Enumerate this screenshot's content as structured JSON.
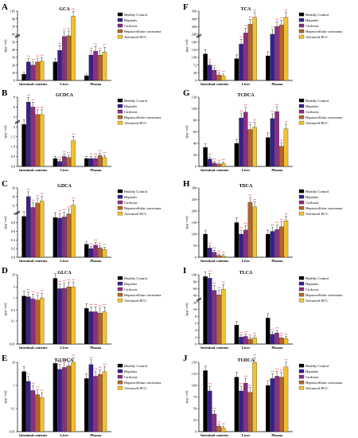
{
  "colors": {
    "Healthy Control": "#000000",
    "Hepatitis": "#3b1f8c",
    "Cirrhosis": "#8a2f82",
    "Hepatocellular carcinoma": "#b5652b",
    "Advanced HCC": "#f2c12e",
    "star": "#d81b2b"
  },
  "legend": [
    "Healthy Control",
    "Hepatitis",
    "Cirrhosis",
    "Hepatocellular carcinoma",
    "Advanced HCC"
  ],
  "y_unit": "(μg / ml)",
  "groups": [
    "Intestinal contents",
    "Liver",
    "Plasma"
  ],
  "chart_data": [
    {
      "type": "bar",
      "panel": "A",
      "title": "GCA",
      "ylabel": "(μg / ml)",
      "yscale": "broken",
      "yticks": [
        "0",
        "10",
        "20",
        "30",
        "40",
        "50",
        "60",
        "70",
        "90",
        "105"
      ],
      "categories": [
        "Intestinal contents",
        "Liver",
        "Plasma"
      ],
      "series": [
        {
          "name": "Healthy Control",
          "values": [
            8,
            24,
            6
          ]
        },
        {
          "name": "Hepatitis",
          "values": [
            24,
            39,
            33
          ]
        },
        {
          "name": "Cirrhosis",
          "values": [
            20,
            57,
            38
          ]
        },
        {
          "name": "Hepatocellular carcinoma",
          "values": [
            24,
            58,
            33
          ]
        },
        {
          "name": "Advanced HCC",
          "values": [
            25,
            95,
            37
          ]
        }
      ]
    },
    {
      "type": "bar",
      "panel": "B",
      "title": "GCDCA",
      "ylabel": "(μg / ml)",
      "yscale": "broken",
      "yticks": [
        "0.0",
        "0.5",
        "1.0",
        "1.5",
        "2",
        "4",
        "6",
        "8"
      ],
      "categories": [
        "Intestinal contents",
        "Liver",
        "Plasma"
      ],
      "series": [
        {
          "name": "Healthy Control",
          "values": [
            2.5,
            0.4,
            0.4
          ]
        },
        {
          "name": "Hepatitis",
          "values": [
            7,
            0.25,
            0.4
          ]
        },
        {
          "name": "Cirrhosis",
          "values": [
            6,
            0.5,
            0.4
          ]
        },
        {
          "name": "Hepatocellular carcinoma",
          "values": [
            4.5,
            0.45,
            0.55
          ]
        },
        {
          "name": "Advanced HCC",
          "values": [
            4.5,
            1.3,
            0.45
          ]
        }
      ]
    },
    {
      "type": "bar",
      "panel": "C",
      "title": "GDCA",
      "ylabel": "(μg / ml)",
      "yscale": "broken",
      "yticks": [
        "0.0",
        "0.2",
        "0.4",
        "0.6",
        "0.8",
        "8",
        "12",
        "16",
        "20"
      ],
      "categories": [
        "Intestinal contents",
        "Liver",
        "Plasma"
      ],
      "series": [
        {
          "name": "Healthy Control",
          "values": [
            6,
            5,
            0.3
          ]
        },
        {
          "name": "Hepatitis",
          "values": [
            16,
            4.5,
            0.2
          ]
        },
        {
          "name": "Cirrhosis",
          "values": [
            11,
            5.5,
            0.28
          ]
        },
        {
          "name": "Hepatocellular carcinoma",
          "values": [
            13,
            8,
            0.22
          ]
        },
        {
          "name": "Advanced HCC",
          "values": [
            14,
            12,
            0.18
          ]
        }
      ]
    },
    {
      "type": "bar",
      "panel": "D",
      "title": "GLCA",
      "ylabel": "(μg / ml)",
      "yscale": "log",
      "yticks": [
        "0.01",
        "0.1",
        "0.3",
        "1",
        "3",
        "10"
      ],
      "categories": [
        "Intestinal contents",
        "Liver",
        "Plasma"
      ],
      "series": [
        {
          "name": "Healthy Control",
          "values": [
            1.2,
            7,
            0.35
          ]
        },
        {
          "name": "Hepatitis",
          "values": [
            1.1,
            2.5,
            0.25
          ]
        },
        {
          "name": "Cirrhosis",
          "values": [
            0.9,
            2.6,
            0.25
          ]
        },
        {
          "name": "Hepatocellular carcinoma",
          "values": [
            0.8,
            3,
            0.22
          ]
        },
        {
          "name": "Advanced HCC",
          "values": [
            1.0,
            3,
            0.25
          ]
        }
      ]
    },
    {
      "type": "bar",
      "panel": "E",
      "title": "GUDCA",
      "ylabel": "(μg / ml)",
      "yscale": "log",
      "yticks": [
        "0.01",
        "0.1",
        "1",
        "10"
      ],
      "categories": [
        "Intestinal contents",
        "Liver",
        "Plasma"
      ],
      "series": [
        {
          "name": "Healthy Control",
          "values": [
            4,
            9,
            2
          ]
        },
        {
          "name": "Hepatitis",
          "values": [
            1.5,
            5,
            8
          ]
        },
        {
          "name": "Cirrhosis",
          "values": [
            0.6,
            6,
            2.5
          ]
        },
        {
          "name": "Hepatocellular carcinoma",
          "values": [
            0.4,
            7,
            3
          ]
        },
        {
          "name": "Advanced HCC",
          "values": [
            0.3,
            12,
            4
          ]
        }
      ]
    },
    {
      "type": "bar",
      "panel": "F",
      "title": "TCA",
      "ylabel": "(μg / ml)",
      "yscale": "broken",
      "yticks": [
        "0",
        "36",
        "72",
        "108",
        "144",
        "180",
        "240",
        "300",
        "400",
        "500"
      ],
      "categories": [
        "Intestinal contents",
        "Liver",
        "Plasma"
      ],
      "series": [
        {
          "name": "Healthy Control",
          "values": [
            124,
            102,
            115
          ]
        },
        {
          "name": "Hepatitis",
          "values": [
            72,
            170,
            240
          ]
        },
        {
          "name": "Cirrhosis",
          "values": [
            48,
            250,
            300
          ]
        },
        {
          "name": "Hepatocellular carcinoma",
          "values": [
            26,
            330,
            320
          ]
        },
        {
          "name": "Advanced HCC",
          "values": [
            22,
            420,
            420
          ]
        }
      ]
    },
    {
      "type": "bar",
      "panel": "G",
      "title": "TCDCA",
      "ylabel": "(μg / ml)",
      "yscale": "linear",
      "yticks": [
        "0",
        "20",
        "40",
        "60",
        "80",
        "100",
        "120"
      ],
      "ylim": [
        0,
        120
      ],
      "categories": [
        "Intestinal contents",
        "Liver",
        "Plasma"
      ],
      "series": [
        {
          "name": "Healthy Control",
          "values": [
            33,
            40,
            50
          ]
        },
        {
          "name": "Hepatitis",
          "values": [
            13,
            84,
            83
          ]
        },
        {
          "name": "Cirrhosis",
          "values": [
            6,
            94,
            95
          ]
        },
        {
          "name": "Hepatocellular carcinoma",
          "values": [
            4,
            64,
            35
          ]
        },
        {
          "name": "Advanced HCC",
          "values": [
            5,
            68,
            65
          ]
        }
      ]
    },
    {
      "type": "bar",
      "panel": "H",
      "title": "TDCA",
      "ylabel": "(μg / ml)",
      "yscale": "linear",
      "yticks": [
        "0",
        "50",
        "100",
        "150",
        "200",
        "250",
        "300"
      ],
      "ylim": [
        0,
        300
      ],
      "categories": [
        "Intestinal contents",
        "Liver",
        "Plasma"
      ],
      "series": [
        {
          "name": "Healthy Control",
          "values": [
            100,
            150,
            100
          ]
        },
        {
          "name": "Hepatitis",
          "values": [
            40,
            100,
            112
          ]
        },
        {
          "name": "Cirrhosis",
          "values": [
            22,
            118,
            120
          ]
        },
        {
          "name": "Hepatocellular carcinoma",
          "values": [
            8,
            238,
            132
          ]
        },
        {
          "name": "Advanced HCC",
          "values": [
            6,
            218,
            158
          ]
        }
      ]
    },
    {
      "type": "bar",
      "panel": "I",
      "title": "TLCA",
      "ylabel": "(μg / ml)",
      "yscale": "broken",
      "yticks": [
        "0",
        "2",
        "4",
        "6",
        "8",
        "10",
        "20",
        "40",
        "60",
        "80",
        "100"
      ],
      "categories": [
        "Intestinal contents",
        "Liver",
        "Plasma"
      ],
      "series": [
        {
          "name": "Healthy Control",
          "values": [
            95,
            5.5,
            7.5
          ]
        },
        {
          "name": "Hepatitis",
          "values": [
            90,
            2.0,
            2.8
          ]
        },
        {
          "name": "Cirrhosis",
          "values": [
            55,
            2.2,
            3.2
          ]
        },
        {
          "name": "Hepatocellular carcinoma",
          "values": [
            42,
            1.4,
            1.8
          ]
        },
        {
          "name": "Advanced HCC",
          "values": [
            58,
            1.8,
            1.6
          ]
        }
      ]
    },
    {
      "type": "bar",
      "panel": "J",
      "title": "TUDCA",
      "ylabel": "(μg / ml)",
      "yscale": "linear",
      "yticks": [
        "0",
        "25",
        "50",
        "75",
        "100",
        "125",
        "150"
      ],
      "ylim": [
        0,
        150
      ],
      "categories": [
        "Intestinal contents",
        "Liver",
        "Plasma"
      ],
      "series": [
        {
          "name": "Healthy Control",
          "values": [
            132,
            118,
            100
          ]
        },
        {
          "name": "Hepatitis",
          "values": [
            88,
            88,
            115
          ]
        },
        {
          "name": "Cirrhosis",
          "values": [
            38,
            105,
            120
          ]
        },
        {
          "name": "Hepatocellular carcinoma",
          "values": [
            12,
            85,
            118
          ]
        },
        {
          "name": "Advanced HCC",
          "values": [
            8,
            155,
            140
          ]
        }
      ]
    }
  ]
}
